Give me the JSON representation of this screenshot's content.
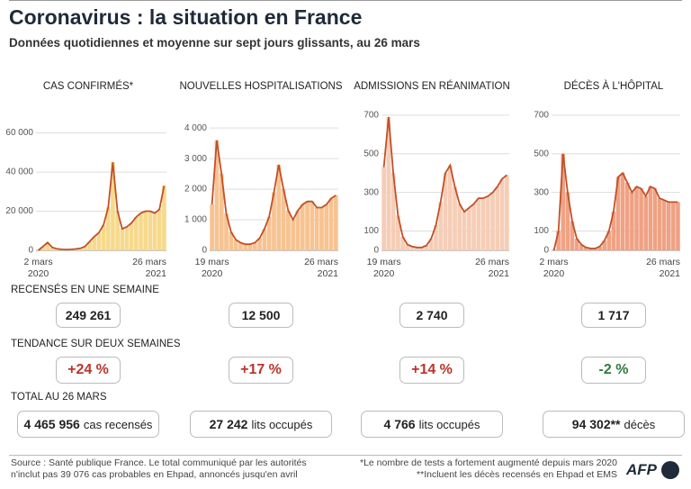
{
  "header": {
    "title": "Coronavirus : la situation en France",
    "subtitle": "Données quotidiennes et moyenne sur sept jours glissants, au 26 mars"
  },
  "chart_data": [
    {
      "type": "line",
      "title": "CAS CONFIRMÉS*",
      "color": "#c0502a",
      "fill": "#f6d98c",
      "categories": [
        "2 mars 2020",
        null,
        null,
        null,
        null,
        null,
        null,
        null,
        null,
        null,
        null,
        null,
        null,
        null,
        null,
        null,
        null,
        null,
        null,
        null,
        null,
        null,
        null,
        null,
        null,
        null,
        null,
        "26 mars 2021"
      ],
      "values": [
        0,
        2000,
        4000,
        1500,
        800,
        500,
        400,
        500,
        700,
        1000,
        2000,
        4500,
        7000,
        9000,
        13000,
        22000,
        45000,
        20000,
        11000,
        12000,
        14000,
        17000,
        19000,
        20000,
        20000,
        19000,
        21000,
        33000
      ],
      "ylim": [
        0,
        75000
      ],
      "yticks": [
        0,
        {
          "value": 20000,
          "label": "20 000"
        },
        {
          "value": 40000,
          "label": "40 000"
        },
        {
          "value": 60000,
          "label": "60 000"
        }
      ]
    },
    {
      "type": "line",
      "title": "NOUVELLES HOSPITALISATIONS",
      "color": "#c0502a",
      "fill": "#f7c391",
      "categories": [
        "19 mars 2020",
        null,
        null,
        null,
        null,
        null,
        null,
        null,
        null,
        null,
        null,
        null,
        null,
        null,
        null,
        null,
        null,
        null,
        null,
        null,
        null,
        null,
        null,
        null,
        null,
        null,
        "26 mars 2021"
      ],
      "values": [
        1500,
        3600,
        2500,
        1200,
        600,
        350,
        250,
        200,
        200,
        250,
        400,
        700,
        1100,
        1900,
        2800,
        2000,
        1300,
        1000,
        1300,
        1500,
        1600,
        1600,
        1400,
        1400,
        1500,
        1700,
        1800
      ],
      "ylim": [
        0,
        4800
      ],
      "yticks": [
        0,
        {
          "value": 1000,
          "label": "1 000"
        },
        {
          "value": 2000,
          "label": "2 000"
        },
        {
          "value": 3000,
          "label": "3 000"
        },
        {
          "value": 4000,
          "label": "4 000"
        }
      ]
    },
    {
      "type": "line",
      "title": "ADMISSIONS EN RÉANIMATION",
      "color": "#c0502a",
      "fill": "#f6cdb6",
      "categories": [
        "19 mars 2020",
        null,
        null,
        null,
        null,
        null,
        null,
        null,
        null,
        null,
        null,
        null,
        null,
        null,
        null,
        null,
        null,
        null,
        null,
        null,
        null,
        null,
        null,
        null,
        null,
        null,
        "26 mars 2021"
      ],
      "values": [
        430,
        690,
        400,
        180,
        70,
        30,
        20,
        15,
        15,
        25,
        60,
        130,
        250,
        400,
        440,
        330,
        240,
        200,
        220,
        240,
        270,
        270,
        280,
        300,
        330,
        370,
        390
      ],
      "ylim": [
        0,
        760
      ],
      "yticks": [
        0,
        100,
        300,
        500,
        700
      ]
    },
    {
      "type": "line",
      "title": "DÉCÈS À L'HÔPITAL",
      "color": "#c0502a",
      "fill": "#efa284",
      "categories": [
        "2 mars 2020",
        null,
        null,
        null,
        null,
        null,
        null,
        null,
        null,
        null,
        null,
        null,
        null,
        null,
        null,
        null,
        null,
        null,
        null,
        null,
        null,
        null,
        null,
        null,
        null,
        null,
        null,
        "26 mars 2021"
      ],
      "values": [
        0,
        100,
        500,
        300,
        150,
        60,
        30,
        15,
        10,
        10,
        20,
        50,
        100,
        200,
        380,
        400,
        350,
        300,
        330,
        320,
        280,
        330,
        320,
        270,
        260,
        250,
        250,
        250
      ],
      "ylim": [
        0,
        760
      ],
      "yticks": [
        0,
        100,
        300,
        500,
        700
      ]
    }
  ],
  "weekly": {
    "label": "RECENSÉS EN UNE SEMAINE",
    "values": [
      "249 261",
      "12 500",
      "2 740",
      "1 717"
    ]
  },
  "trend": {
    "label": "TENDANCE SUR DEUX SEMAINES",
    "items": [
      {
        "text": "+24 %",
        "color": "#b8352b"
      },
      {
        "text": "+17 %",
        "color": "#b8352b"
      },
      {
        "text": "+14 %",
        "color": "#b8352b"
      },
      {
        "text": "-2 %",
        "color": "#2f7a3a"
      }
    ]
  },
  "total": {
    "label": "TOTAL AU 26 MARS",
    "items": [
      {
        "number": "4 465 956",
        "unit": "cas recensés"
      },
      {
        "number": "27 242",
        "unit": "lits occupés"
      },
      {
        "number": "4 766",
        "unit": "lits occupés"
      },
      {
        "number": "94 302**",
        "unit": "décès"
      }
    ]
  },
  "footer": {
    "source": [
      "Source : Santé publique France. Le total communiqué par les autorités",
      "n'inclut pas 39 076 cas probables en Ehpad, annoncés jusqu'en avril"
    ],
    "notes": [
      "*Le nombre de tests a fortement augmenté depuis mars 2020",
      "**Incluent les décès recensés en Ehpad et EMS"
    ],
    "logo": "AFP"
  }
}
